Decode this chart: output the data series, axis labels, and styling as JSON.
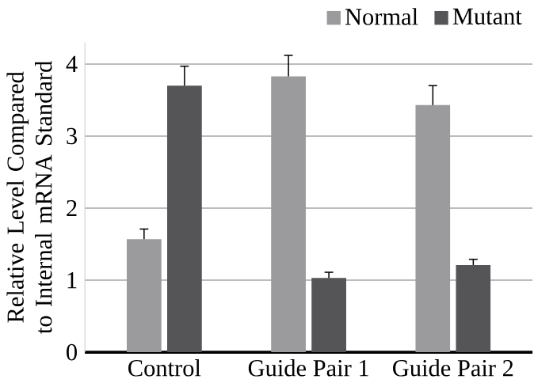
{
  "chart_data": {
    "type": "bar",
    "ylabel": "Relative Level Compared\nto Internal mRNA Standard",
    "categories": [
      "Control",
      "Guide Pair 1",
      "Guide Pair 2"
    ],
    "series": [
      {
        "name": "Normal",
        "color": "#9b9b9d",
        "values": [
          1.57,
          3.83,
          3.43
        ],
        "errors": [
          [
            1.57,
            1.71
          ],
          [
            3.83,
            4.12
          ],
          [
            3.43,
            3.7
          ]
        ]
      },
      {
        "name": "Mutant",
        "color": "#555557",
        "values": [
          3.7,
          1.03,
          1.21
        ],
        "errors": [
          [
            3.7,
            3.97
          ],
          [
            1.03,
            1.11
          ],
          [
            1.21,
            1.29
          ]
        ]
      }
    ],
    "ylim": [
      0,
      4.3
    ],
    "yticks": [
      0,
      1,
      2,
      3,
      4
    ],
    "grid": "y",
    "legend": "top right"
  }
}
